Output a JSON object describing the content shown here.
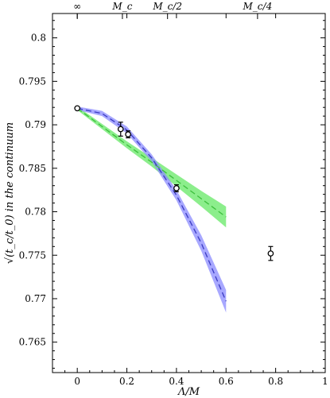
{
  "chart_data": {
    "type": "scatter",
    "xlabel": "Λ/M",
    "ylabel": "√(t_c/t_0) in the continuum",
    "xlim": [
      -0.1,
      1.0
    ],
    "ylim": [
      0.7615,
      0.8028
    ],
    "x_ticks": [
      0,
      0.2,
      0.4,
      0.6,
      0.8,
      1
    ],
    "x_tick_labels": [
      "0",
      "0.2",
      "0.4",
      "0.6",
      "0.8",
      "1"
    ],
    "y_ticks": [
      0.765,
      0.77,
      0.775,
      0.78,
      0.785,
      0.79,
      0.795,
      0.8
    ],
    "y_tick_labels": [
      "0.765",
      "0.77",
      "0.775",
      "0.78",
      "0.785",
      "0.79",
      "0.795",
      "0.8"
    ],
    "top_axis": {
      "ticks": [
        0,
        0.182,
        0.364,
        0.727
      ],
      "labels": [
        "∞",
        "M_c",
        "M_c/2",
        "M_c/4"
      ]
    },
    "grid": false,
    "points": {
      "x": [
        0.0,
        0.175,
        0.205,
        0.4,
        0.78
      ],
      "y": [
        0.7919,
        0.7895,
        0.7889,
        0.7827,
        0.7752
      ],
      "err": [
        0.0001,
        0.0008,
        0.0004,
        0.0004,
        0.0008
      ]
    },
    "fits": [
      {
        "color": "#3cbf3c",
        "band_color": "#66e866",
        "x": [
          0,
          0.1,
          0.2,
          0.3,
          0.4,
          0.5,
          0.6
        ],
        "y": [
          0.7919,
          0.7898,
          0.7877,
          0.7857,
          0.7836,
          0.7815,
          0.7794
        ],
        "err": [
          0.0002,
          0.0003,
          0.0004,
          0.0005,
          0.0007,
          0.0009,
          0.0012
        ]
      },
      {
        "color": "#3a3ac2",
        "band_color": "#8b8bff",
        "x": [
          0,
          0.1,
          0.2,
          0.3,
          0.4,
          0.5,
          0.6
        ],
        "y": [
          0.7919,
          0.7913,
          0.7894,
          0.7862,
          0.7819,
          0.7764,
          0.7697
        ],
        "err": [
          0.0002,
          0.0003,
          0.0004,
          0.0004,
          0.0006,
          0.0009,
          0.0013
        ]
      }
    ]
  }
}
